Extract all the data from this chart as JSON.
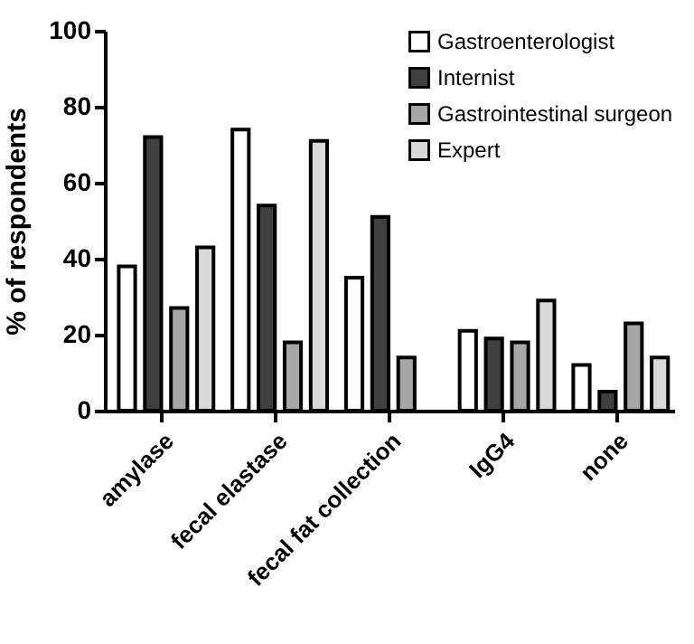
{
  "chart_data": {
    "type": "bar",
    "ylabel": "% of respondents",
    "categories": [
      "amylase",
      "fecal elastase",
      "fecal fat collection",
      "IgG4",
      "none"
    ],
    "series": [
      {
        "name": "Gastroenterologist",
        "color": "#ffffff",
        "values": [
          38,
          74,
          35,
          21,
          12
        ]
      },
      {
        "name": "Internist",
        "color": "#404040",
        "values": [
          72,
          54,
          51,
          19,
          5
        ]
      },
      {
        "name": "Gastrointestinal surgeon",
        "color": "#a6a6a6",
        "values": [
          27,
          18,
          14,
          18,
          23
        ]
      },
      {
        "name": "Expert",
        "color": "#d9d9d9",
        "values": [
          43,
          71,
          null,
          29,
          14
        ]
      }
    ],
    "ylim": [
      0,
      100
    ],
    "yticks": [
      0,
      20,
      40,
      60,
      80,
      100
    ],
    "grid": false,
    "legend": "top right"
  }
}
